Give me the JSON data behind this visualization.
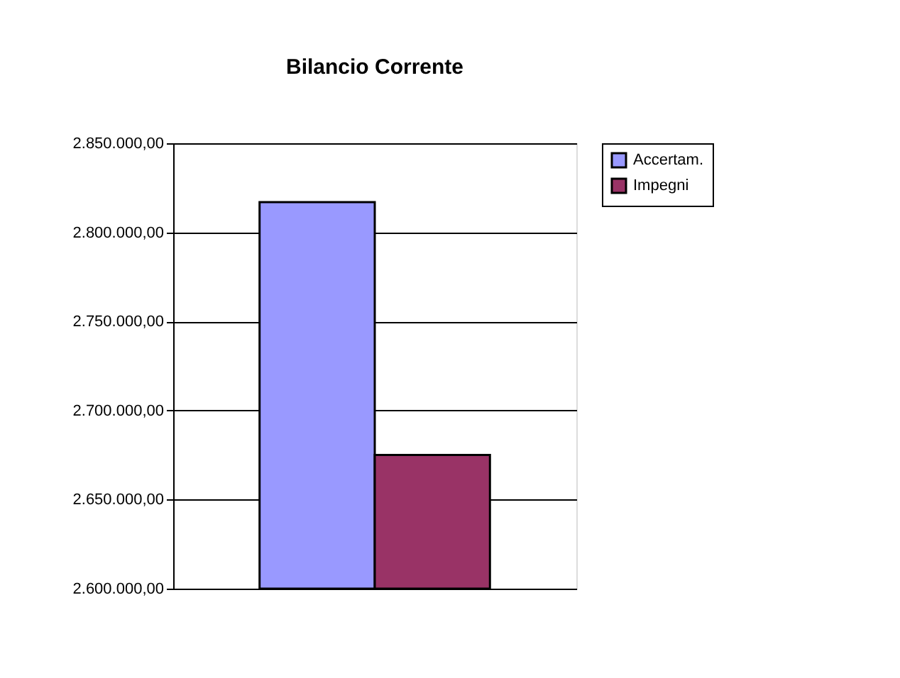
{
  "chart_data": {
    "type": "bar",
    "title": "Bilancio Corrente",
    "categories": [
      null
    ],
    "series": [
      {
        "name": "Accertam.",
        "color": "#9999ff",
        "values": [
          2817000
        ]
      },
      {
        "name": "Impegni",
        "color": "#993366",
        "values": [
          2675000
        ]
      }
    ],
    "ylim": [
      2600000,
      2850000
    ],
    "yticks": [
      {
        "value": 2600000,
        "label": "2.600.000,00"
      },
      {
        "value": 2650000,
        "label": "2.650.000,00"
      },
      {
        "value": 2700000,
        "label": "2.700.000,00"
      },
      {
        "value": 2750000,
        "label": "2.750.000,00"
      },
      {
        "value": 2800000,
        "label": "2.800.000,00"
      },
      {
        "value": 2850000,
        "label": "2.850.000,00"
      }
    ],
    "grid": "y",
    "legend": "right",
    "tick_labels": "y"
  }
}
